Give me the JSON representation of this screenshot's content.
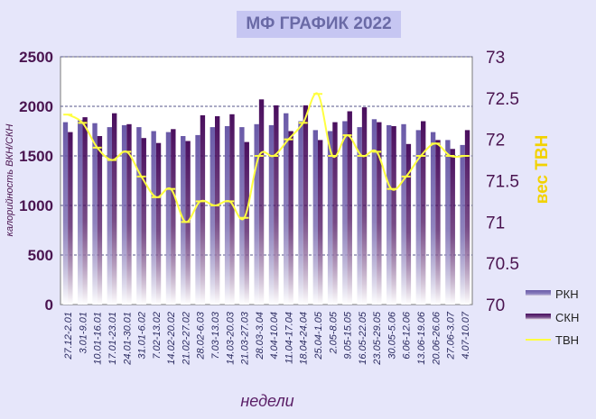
{
  "chart_data": {
    "type": "bar",
    "title": "МФ ГРАФИК 2022",
    "xlabel": "недели",
    "ylabel": "калорийность ВКН/СКН",
    "y2label": "вес ТВН",
    "ylim": [
      0,
      2500
    ],
    "y2lim": [
      70,
      73
    ],
    "yticks": [
      "0",
      "500",
      "1000",
      "1500",
      "2000",
      "2500"
    ],
    "y2ticks": [
      "70",
      "70.5",
      "71",
      "71.5",
      "72",
      "72.5",
      "73"
    ],
    "grid": "horizontal dashed",
    "legend_position": "right",
    "categories": [
      "27.12-2.01",
      "3.01-9.01",
      "10.01-16.01",
      "17.01-23.01",
      "24.01-30.01",
      "31.01-6.02",
      "7.02-13.02",
      "14.02-20.02",
      "21.02-27.02",
      "28.02-6.03",
      "7.03-13.03",
      "14.03-20.03",
      "21.03-27.03",
      "28.03-3.04",
      "4.04-10.04",
      "11.04-17.04",
      "18.04-24.04",
      "25.04-1.05",
      "2.05-8.05",
      "9.05-15.05",
      "16.05-22.05",
      "23.05-29.05",
      "30.05-5.06",
      "6.06-12.06",
      "13.06-19.06",
      "20.06-26.06",
      "27.06-3.07",
      "4.07-10.07"
    ],
    "series": [
      {
        "name": "РКН",
        "type": "bar",
        "color": "#7a6ab8",
        "values": [
          1840,
          1860,
          1830,
          1790,
          1810,
          1790,
          1750,
          1740,
          1700,
          1710,
          1790,
          1800,
          1790,
          1820,
          1810,
          1930,
          1850,
          1760,
          1750,
          1850,
          1790,
          1870,
          1810,
          1820,
          1760,
          1740,
          1660,
          1610
        ]
      },
      {
        "name": "СКН",
        "type": "bar",
        "color": "#5a1a6e",
        "values": [
          1740,
          1890,
          1700,
          1930,
          1820,
          1680,
          1630,
          1770,
          1650,
          1910,
          1900,
          1920,
          1640,
          2070,
          2010,
          1750,
          2010,
          1660,
          1840,
          1950,
          1990,
          1840,
          1800,
          1620,
          1850,
          1660,
          1570,
          1760
        ]
      },
      {
        "name": "ТВН",
        "type": "line",
        "axis": "right",
        "color": "#ffff40",
        "values": [
          72.3,
          72.2,
          71.9,
          71.75,
          71.85,
          71.55,
          71.3,
          71.4,
          71.0,
          71.25,
          71.2,
          71.25,
          71.05,
          71.8,
          71.8,
          72.0,
          72.2,
          72.55,
          71.8,
          72.05,
          71.8,
          71.85,
          71.4,
          71.55,
          71.8,
          71.95,
          71.8,
          71.8
        ]
      }
    ]
  }
}
